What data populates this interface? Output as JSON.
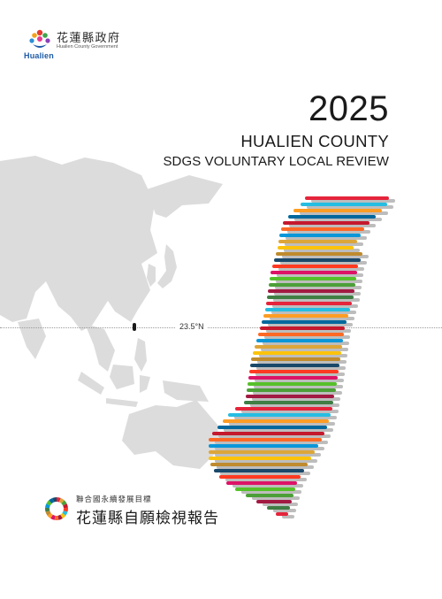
{
  "logo": {
    "wordmark": "Hualien",
    "name_cn": "花蓮縣政府",
    "name_en": "Hualien County Government"
  },
  "title": {
    "year": "2025",
    "county": "HUALIEN COUNTY",
    "subtitle": "SDGS VOLUNTARY LOCAL REVIEW"
  },
  "map": {
    "latitude_label": "23.5°N"
  },
  "footer": {
    "line1": "聯合國永續發展目標",
    "line2": "花蓮縣自願檢視報告"
  },
  "colors": {
    "land": "#dcdcdc",
    "sdg": [
      "#E5243B",
      "#DDA63A",
      "#4C9F38",
      "#C5192D",
      "#FF3A21",
      "#26BDE2",
      "#FCC30B",
      "#A21942",
      "#FD6925",
      "#DD1367",
      "#FD9D24",
      "#BF8B2E",
      "#3F7E44",
      "#0A97D9",
      "#56C02B",
      "#00689D",
      "#19486A"
    ]
  }
}
